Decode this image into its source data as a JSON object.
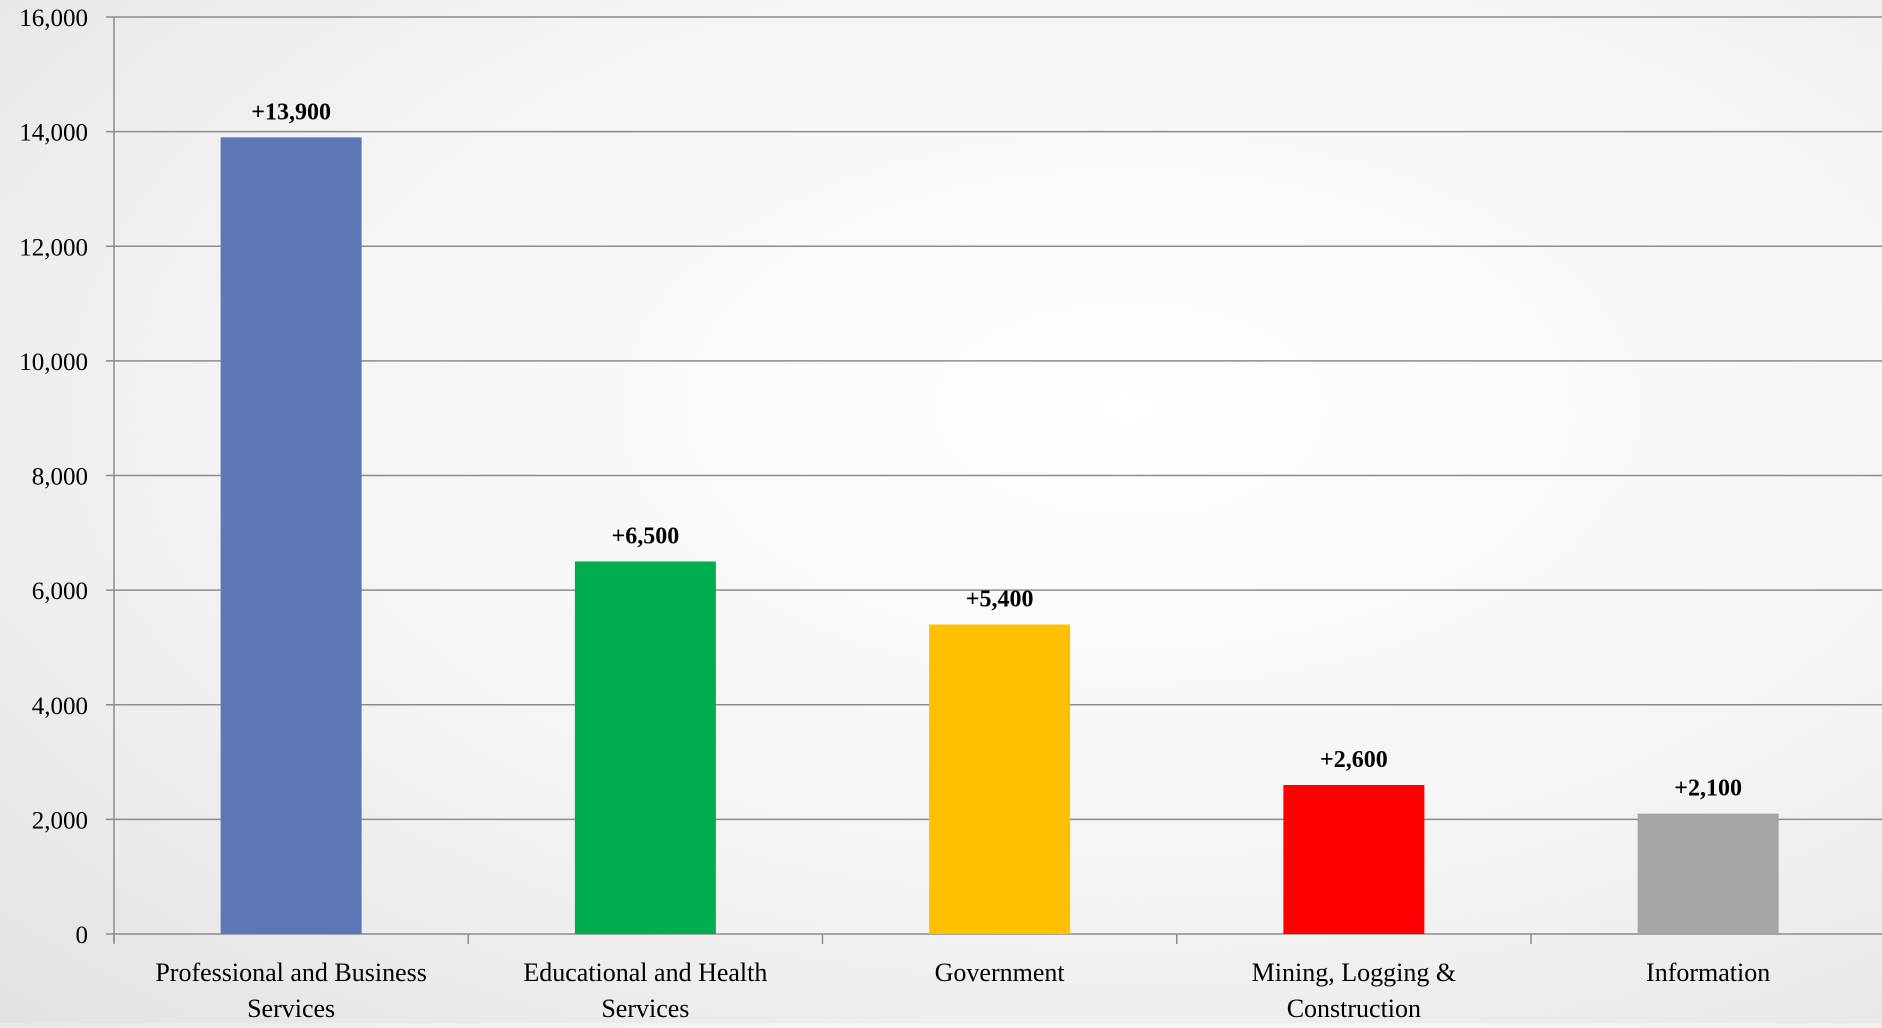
{
  "chart_data": {
    "type": "bar",
    "categories": [
      [
        "Professional and Business",
        "Services"
      ],
      [
        "Educational and Health",
        "Services"
      ],
      [
        "Government"
      ],
      [
        "Mining, Logging &",
        "Construction"
      ],
      [
        "Information"
      ]
    ],
    "values": [
      13900,
      6500,
      5400,
      2600,
      2100
    ],
    "data_labels": [
      "+13,900",
      "+6,500",
      "+5,400",
      "+2,600",
      "+2,100"
    ],
    "colors": [
      "#5f76b4",
      "#00ad4f",
      "#ffc000",
      "#ff0000",
      "#a5a5a5"
    ],
    "ylim": [
      0,
      16000
    ],
    "yticks": [
      0,
      2000,
      4000,
      6000,
      8000,
      10000,
      12000,
      14000,
      16000
    ],
    "ytick_labels": [
      "0",
      "2,000",
      "4,000",
      "6,000",
      "8,000",
      "10,000",
      "12,000",
      "14,000",
      "16,000"
    ],
    "grid": true,
    "legend": false,
    "title": "",
    "xlabel": "",
    "ylabel": ""
  }
}
